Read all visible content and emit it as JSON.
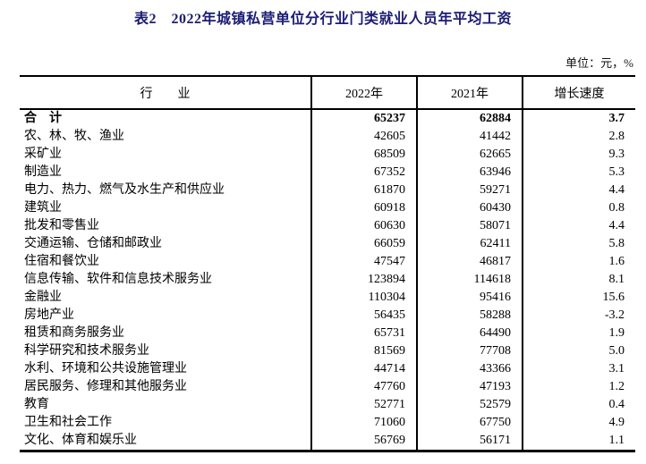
{
  "title": "表2　2022年城镇私营单位分行业门类就业人员年平均工资",
  "unit_note": "单位：元，%",
  "colors": {
    "title_text": "#1c1c75",
    "body_text": "#000000",
    "border": "#000000",
    "background": "#ffffff"
  },
  "table": {
    "headers": {
      "industry": "行　　业",
      "year_2022": "2022年",
      "year_2021": "2021年",
      "growth": "增长速度"
    },
    "rows": [
      {
        "industry": "合　计",
        "year_2022": "65237",
        "year_2021": "62884",
        "growth": "3.7",
        "bold": true
      },
      {
        "industry": "农、林、牧、渔业",
        "year_2022": "42605",
        "year_2021": "41442",
        "growth": "2.8",
        "bold": false
      },
      {
        "industry": "采矿业",
        "year_2022": "68509",
        "year_2021": "62665",
        "growth": "9.3",
        "bold": false
      },
      {
        "industry": "制造业",
        "year_2022": "67352",
        "year_2021": "63946",
        "growth": "5.3",
        "bold": false
      },
      {
        "industry": "电力、热力、燃气及水生产和供应业",
        "year_2022": "61870",
        "year_2021": "59271",
        "growth": "4.4",
        "bold": false
      },
      {
        "industry": "建筑业",
        "year_2022": "60918",
        "year_2021": "60430",
        "growth": "0.8",
        "bold": false
      },
      {
        "industry": "批发和零售业",
        "year_2022": "60630",
        "year_2021": "58071",
        "growth": "4.4",
        "bold": false
      },
      {
        "industry": "交通运输、仓储和邮政业",
        "year_2022": "66059",
        "year_2021": "62411",
        "growth": "5.8",
        "bold": false
      },
      {
        "industry": "住宿和餐饮业",
        "year_2022": "47547",
        "year_2021": "46817",
        "growth": "1.6",
        "bold": false
      },
      {
        "industry": "信息传输、软件和信息技术服务业",
        "year_2022": "123894",
        "year_2021": "114618",
        "growth": "8.1",
        "bold": false
      },
      {
        "industry": "金融业",
        "year_2022": "110304",
        "year_2021": "95416",
        "growth": "15.6",
        "bold": false
      },
      {
        "industry": "房地产业",
        "year_2022": "56435",
        "year_2021": "58288",
        "growth": "-3.2",
        "bold": false
      },
      {
        "industry": "租赁和商务服务业",
        "year_2022": "65731",
        "year_2021": "64490",
        "growth": "1.9",
        "bold": false
      },
      {
        "industry": "科学研究和技术服务业",
        "year_2022": "81569",
        "year_2021": "77708",
        "growth": "5.0",
        "bold": false
      },
      {
        "industry": "水利、环境和公共设施管理业",
        "year_2022": "44714",
        "year_2021": "43366",
        "growth": "3.1",
        "bold": false
      },
      {
        "industry": "居民服务、修理和其他服务业",
        "year_2022": "47760",
        "year_2021": "47193",
        "growth": "1.2",
        "bold": false
      },
      {
        "industry": "教育",
        "year_2022": "52771",
        "year_2021": "52579",
        "growth": "0.4",
        "bold": false
      },
      {
        "industry": "卫生和社会工作",
        "year_2022": "71060",
        "year_2021": "67750",
        "growth": "4.9",
        "bold": false
      },
      {
        "industry": "文化、体育和娱乐业",
        "year_2022": "56769",
        "year_2021": "56171",
        "growth": "1.1",
        "bold": false
      }
    ]
  },
  "chart_data": {
    "type": "table",
    "title": "表2　2022年城镇私营单位分行业门类就业人员年平均工资",
    "unit": "元，%",
    "columns": [
      "行业",
      "2022年",
      "2021年",
      "增长速度"
    ],
    "rows": [
      [
        "合计",
        65237,
        62884,
        3.7
      ],
      [
        "农、林、牧、渔业",
        42605,
        41442,
        2.8
      ],
      [
        "采矿业",
        68509,
        62665,
        9.3
      ],
      [
        "制造业",
        67352,
        63946,
        5.3
      ],
      [
        "电力、热力、燃气及水生产和供应业",
        61870,
        59271,
        4.4
      ],
      [
        "建筑业",
        60918,
        60430,
        0.8
      ],
      [
        "批发和零售业",
        60630,
        58071,
        4.4
      ],
      [
        "交通运输、仓储和邮政业",
        66059,
        62411,
        5.8
      ],
      [
        "住宿和餐饮业",
        47547,
        46817,
        1.6
      ],
      [
        "信息传输、软件和信息技术服务业",
        123894,
        114618,
        8.1
      ],
      [
        "金融业",
        110304,
        95416,
        15.6
      ],
      [
        "房地产业",
        56435,
        58288,
        -3.2
      ],
      [
        "租赁和商务服务业",
        65731,
        64490,
        1.9
      ],
      [
        "科学研究和技术服务业",
        81569,
        77708,
        5.0
      ],
      [
        "水利、环境和公共设施管理业",
        44714,
        43366,
        3.1
      ],
      [
        "居民服务、修理和其他服务业",
        47760,
        47193,
        1.2
      ],
      [
        "教育",
        52771,
        52579,
        0.4
      ],
      [
        "卫生和社会工作",
        71060,
        67750,
        4.9
      ],
      [
        "文化、体育和娱乐业",
        56769,
        56171,
        1.1
      ]
    ]
  }
}
